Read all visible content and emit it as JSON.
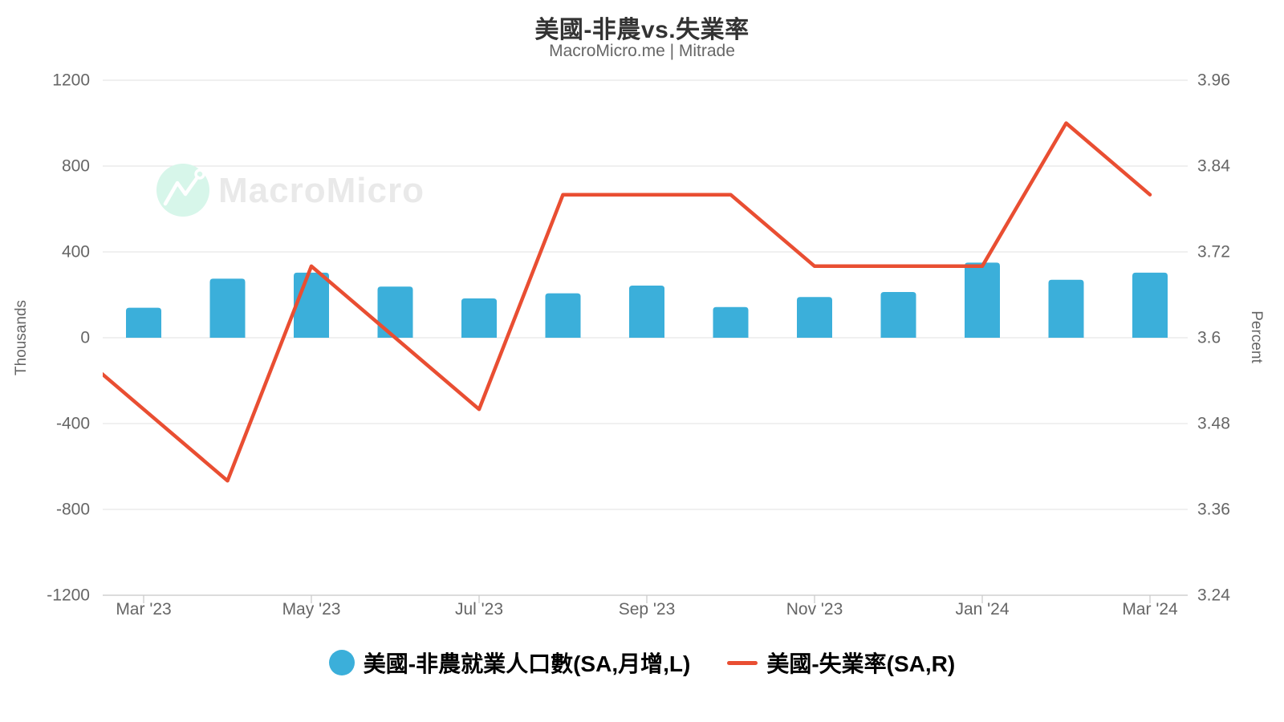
{
  "header": {
    "title": "美國-非農vs.失業率",
    "subtitle": "MacroMicro.me | Mitrade"
  },
  "watermark": {
    "text": "MacroMicro"
  },
  "axes": {
    "left": {
      "label": "Thousands",
      "ticks": [
        "1200",
        "800",
        "400",
        "0",
        "-400",
        "-800",
        "-1200"
      ]
    },
    "right": {
      "label": "Percent",
      "ticks": [
        "3.96",
        "3.84",
        "3.72",
        "3.6",
        "3.48",
        "3.36",
        "3.24"
      ]
    },
    "x": {
      "tick_labels": [
        "Mar '23",
        "May '23",
        "Jul '23",
        "Sep '23",
        "Nov '23",
        "Jan '24",
        "Mar '24"
      ]
    }
  },
  "legend": {
    "items": [
      {
        "label": "美國-非農就業人口數(SA,月增,L)",
        "marker": "circle",
        "color": "#3BAFDA"
      },
      {
        "label": "美國-失業率(SA,R)",
        "marker": "line",
        "color": "#E94E32"
      }
    ]
  },
  "colors": {
    "bar": "#3BAFDA",
    "line": "#E94E32",
    "gridline": "#E6E6E6",
    "axis_line": "#CCCCCC",
    "tick_text": "#666666",
    "watermark_circle": "#D7F6EA",
    "watermark_text": "#E9E9E9"
  },
  "chart_data": {
    "type": "combo",
    "title": "美國-非農vs.失業率",
    "subtitle": "MacroMicro.me | Mitrade",
    "categories": [
      "Feb '23",
      "Mar '23",
      "Apr '23",
      "May '23",
      "Jun '23",
      "Jul '23",
      "Aug '23",
      "Sep '23",
      "Oct '23",
      "Nov '23",
      "Dec '23",
      "Jan '24",
      "Feb '24",
      "Mar '24"
    ],
    "x_tick_labels": [
      "Mar '23",
      "May '23",
      "Jul '23",
      "Sep '23",
      "Nov '23",
      "Jan '24",
      "Mar '24"
    ],
    "series": [
      {
        "name": "美國-非農就業人口數(SA,月增,L)",
        "type": "bar",
        "axis": "left",
        "unit": "Thousands",
        "color": "#3BAFDA",
        "values": [
          null,
          140,
          275,
          303,
          238,
          183,
          207,
          243,
          143,
          190,
          213,
          350,
          270,
          303
        ]
      },
      {
        "name": "美國-失業率(SA,R)",
        "type": "line",
        "axis": "right",
        "unit": "Percent",
        "color": "#E94E32",
        "values": [
          3.6,
          3.5,
          3.4,
          3.7,
          3.6,
          3.5,
          3.8,
          3.8,
          3.8,
          3.7,
          3.7,
          3.7,
          3.9,
          3.8
        ]
      }
    ],
    "left_ylabel": "Thousands",
    "right_ylabel": "Percent",
    "left_ylim": [
      -1200,
      1200
    ],
    "right_ylim": [
      3.24,
      3.96
    ],
    "left_yticks": [
      1200,
      800,
      400,
      0,
      -400,
      -800,
      -1200
    ],
    "right_yticks": [
      3.96,
      3.84,
      3.72,
      3.6,
      3.48,
      3.36,
      3.24
    ],
    "grid": true,
    "legend_position": "bottom",
    "note": "first category (Feb '23) is clipped at the left plot edge; only the line segment toward Mar '23 is visible"
  }
}
